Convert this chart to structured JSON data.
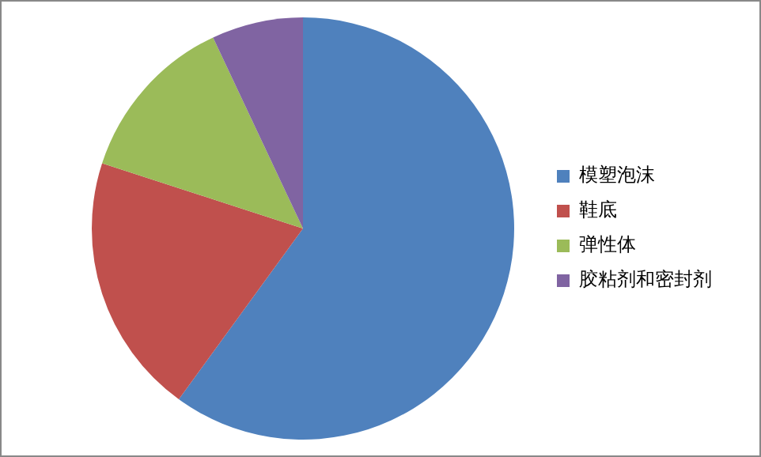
{
  "chart_data": {
    "type": "pie",
    "categories": [
      "模塑泡沫",
      "鞋底",
      "弹性体",
      "胶粘剂和密封剂"
    ],
    "values": [
      60,
      20,
      13,
      7
    ],
    "colors": [
      "#4f81bd",
      "#c0504d",
      "#9bbb59",
      "#8064a2"
    ],
    "legend": "right"
  }
}
